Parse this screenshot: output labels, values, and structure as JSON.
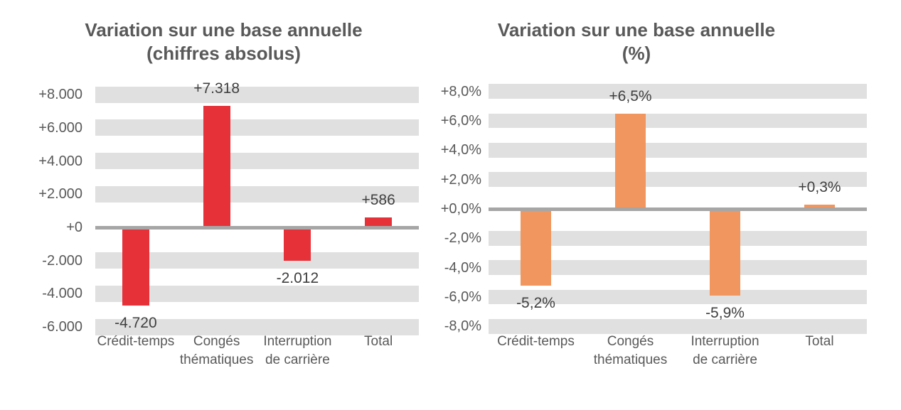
{
  "chart_data": [
    {
      "id": "absolute",
      "type": "bar",
      "title": "Variation sur une base annuelle",
      "subtitle": "(chiffres absolus)",
      "categories": [
        "Crédit-temps",
        "Congés thématiques",
        "Interruption de carrière",
        "Total"
      ],
      "category_label_lines": [
        [
          "Crédit-temps"
        ],
        [
          "Congés",
          "thématiques"
        ],
        [
          "Interruption",
          "de carrière"
        ],
        [
          "Total"
        ]
      ],
      "values": [
        -4720,
        7318,
        -2012,
        586
      ],
      "data_labels": [
        "-4.720",
        "+7.318",
        "-2.012",
        "+586"
      ],
      "bar_color": "#E73138",
      "stripe_color": "#E0E0E0",
      "zero_line_color": "#A6A6A6",
      "y_ticks": [
        {
          "value": 8000,
          "label": "+8.000"
        },
        {
          "value": 6000,
          "label": "+6.000"
        },
        {
          "value": 4000,
          "label": "+4.000"
        },
        {
          "value": 2000,
          "label": "+2.000"
        },
        {
          "value": 0,
          "label": "+0"
        },
        {
          "value": -2000,
          "label": "-2.000"
        },
        {
          "value": -4000,
          "label": "-4.000"
        },
        {
          "value": -6000,
          "label": "-6.000"
        }
      ],
      "ylim": [
        -6000,
        8000
      ],
      "xlabel": "",
      "ylabel": "",
      "grid": "striped-horizontal-bands",
      "legend": "none"
    },
    {
      "id": "percent",
      "type": "bar",
      "title": "Variation sur une base annuelle",
      "subtitle": "(%)",
      "categories": [
        "Crédit-temps",
        "Congés thématiques",
        "Interruption de carrière",
        "Total"
      ],
      "category_label_lines": [
        [
          "Crédit-temps"
        ],
        [
          "Congés",
          "thématiques"
        ],
        [
          "Interruption",
          "de carrière"
        ],
        [
          "Total"
        ]
      ],
      "values": [
        -5.2,
        6.5,
        -5.9,
        0.3
      ],
      "data_labels": [
        "-5,2%",
        "+6,5%",
        "-5,9%",
        "+0,3%"
      ],
      "bar_color": "#F0965E",
      "stripe_color": "#E0E0E0",
      "zero_line_color": "#A6A6A6",
      "y_ticks": [
        {
          "value": 8,
          "label": "+8,0%"
        },
        {
          "value": 6,
          "label": "+6,0%"
        },
        {
          "value": 4,
          "label": "+4,0%"
        },
        {
          "value": 2,
          "label": "+2,0%"
        },
        {
          "value": 0,
          "label": "+0,0%"
        },
        {
          "value": -2,
          "label": "-2,0%"
        },
        {
          "value": -4,
          "label": "-4,0%"
        },
        {
          "value": -6,
          "label": "-6,0%"
        },
        {
          "value": -8,
          "label": "-8,0%"
        }
      ],
      "ylim": [
        -8,
        8
      ],
      "xlabel": "",
      "ylabel": "",
      "grid": "striped-horizontal-bands",
      "legend": "none"
    }
  ]
}
